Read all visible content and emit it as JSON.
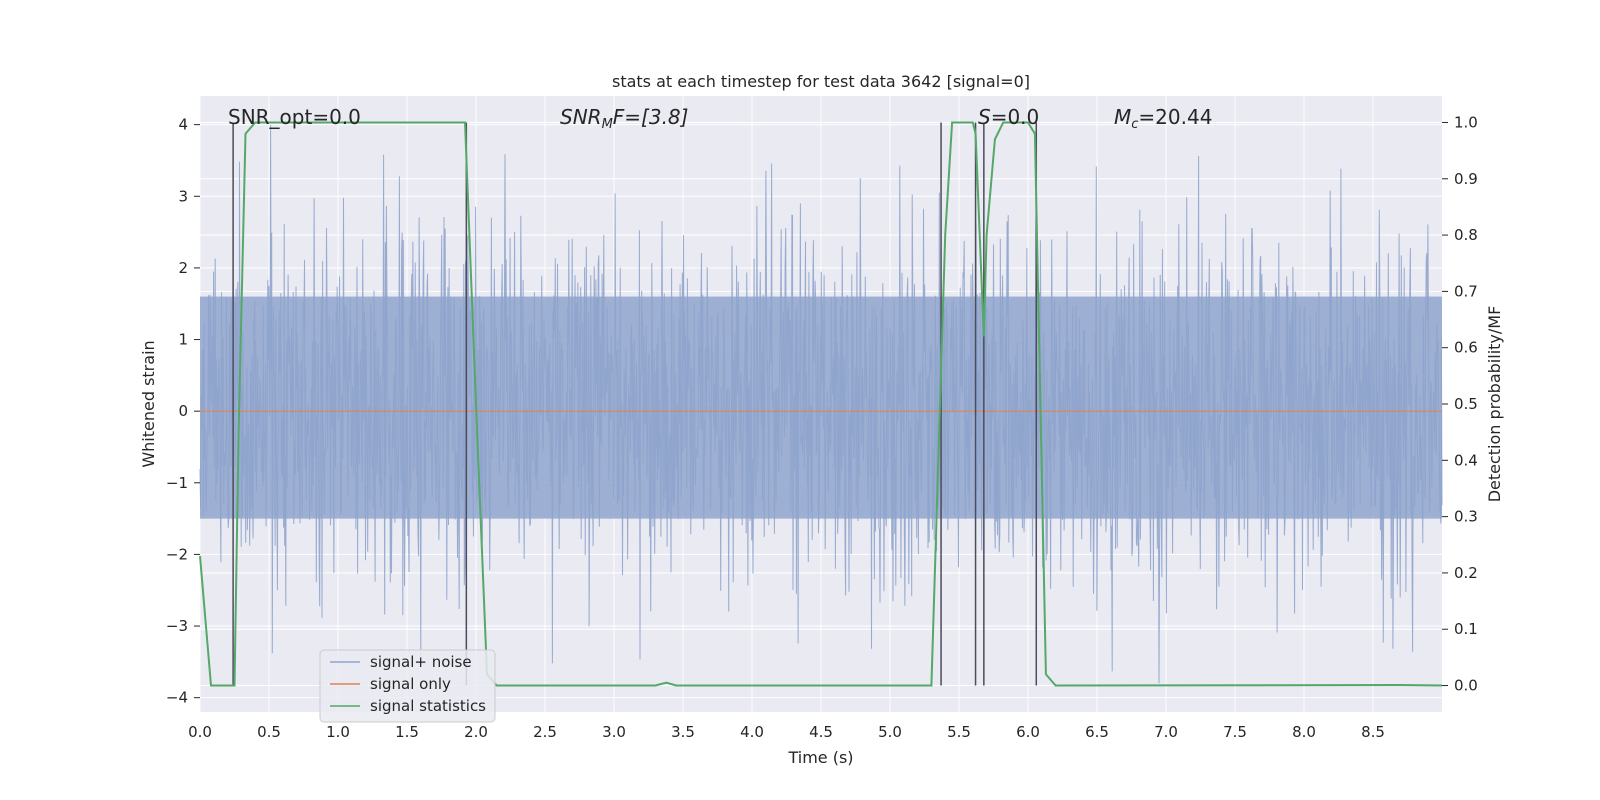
{
  "chart_data": {
    "type": "line",
    "title": "stats at each timestep for test data 3642 [signal=0]",
    "xlabel": "Time (s)",
    "ylabel": "Whitened strain",
    "y2label": "Detection probability/MF",
    "xlim": [
      0,
      9
    ],
    "ylim": [
      -4.2,
      4.4
    ],
    "y2lim": [
      -0.047,
      1.047
    ],
    "x_ticks": [
      0,
      0.5,
      1,
      1.5,
      2,
      2.5,
      3,
      3.5,
      4,
      4.5,
      5,
      5.5,
      6,
      6.5,
      7,
      7.5,
      8,
      8.5
    ],
    "x_tick_labels": [
      "0.0",
      "0.5",
      "1.0",
      "1.5",
      "2.0",
      "2.5",
      "3.0",
      "3.5",
      "4.0",
      "4.5",
      "5.0",
      "5.5",
      "6.0",
      "6.5",
      "7.0",
      "7.5",
      "8.0",
      "8.5"
    ],
    "y_ticks": [
      -4,
      -3,
      -2,
      -1,
      0,
      1,
      2,
      3,
      4
    ],
    "y_tick_labels": [
      "−4",
      "−3",
      "−2",
      "−1",
      "0",
      "1",
      "2",
      "3",
      "4"
    ],
    "y2_ticks": [
      0,
      0.1,
      0.2,
      0.3,
      0.4,
      0.5,
      0.6,
      0.7,
      0.8,
      0.9,
      1.0
    ],
    "y2_tick_labels": [
      "0.0",
      "0.1",
      "0.2",
      "0.3",
      "0.4",
      "0.5",
      "0.6",
      "0.7",
      "0.8",
      "0.9",
      "1.0"
    ],
    "grid": true,
    "legend_position": "lower-left",
    "annotations": {
      "snr_opt": "SNR_opt=0.0",
      "snr_mf_main": "SNR",
      "snr_mf_sub": "M",
      "snr_mf_rest": "F=[3.8]",
      "s_main": "S",
      "s_rest": "=0.0",
      "mc_main": "M",
      "mc_sub": "c",
      "mc_rest": "=20.44"
    },
    "series": [
      {
        "name": "signal+ noise",
        "color": "#8fa4cc",
        "description_amplitude_range": [
          -3.8,
          4.0
        ],
        "noise_band_y": [
          -1.5,
          1.6
        ]
      },
      {
        "name": "signal only",
        "color": "#dd8452",
        "x": [
          0,
          9
        ],
        "y": [
          0,
          0
        ]
      },
      {
        "name": "signal statistics",
        "color": "#55a868",
        "axis": "right",
        "x": [
          0,
          0.08,
          0.25,
          0.28,
          0.33,
          0.4,
          1.92,
          2.0,
          2.08,
          2.15,
          3.3,
          3.38,
          3.45,
          5.3,
          5.4,
          5.45,
          5.6,
          5.62,
          5.68,
          5.7,
          5.76,
          5.82,
          6.0,
          6.05,
          6.13,
          6.2,
          8.7,
          9.0
        ],
        "y": [
          0.23,
          0.0,
          0.0,
          0.45,
          0.98,
          1.0,
          1.0,
          0.5,
          0.02,
          0.0,
          0.0,
          0.005,
          0.0,
          0.0,
          0.8,
          1.0,
          1.0,
          0.98,
          0.62,
          0.8,
          0.97,
          1.0,
          1.0,
          0.98,
          0.02,
          0.0,
          0.001,
          0.0
        ]
      }
    ],
    "vertical_markers_x": [
      0.24,
      1.93,
      5.37,
      5.62,
      5.68,
      6.06
    ],
    "vertical_markers_range": [
      0,
      1
    ]
  }
}
